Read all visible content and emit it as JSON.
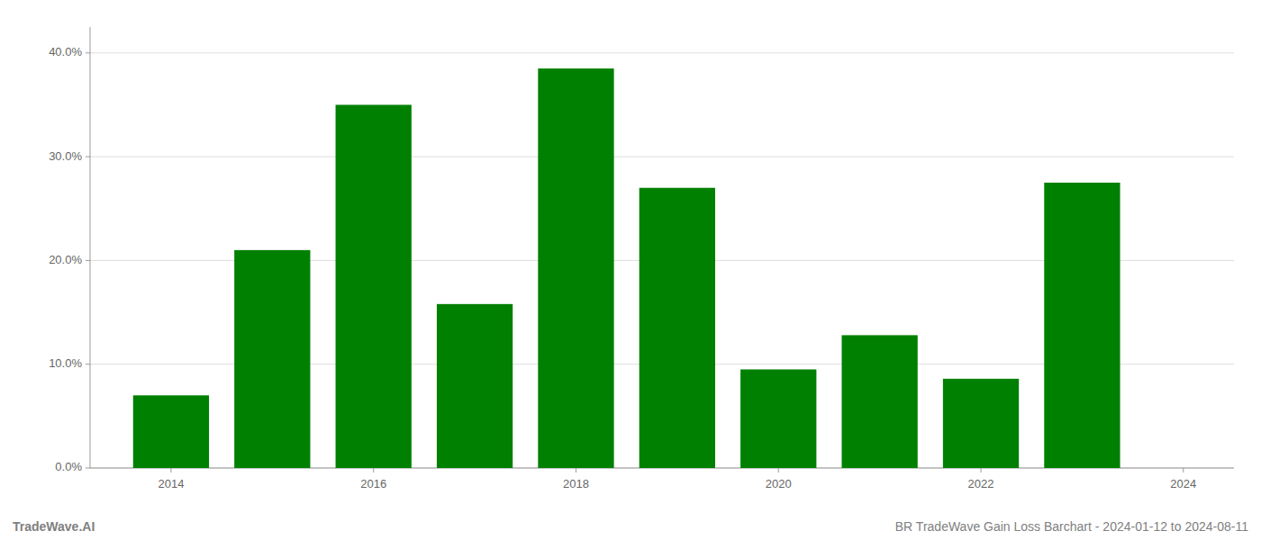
{
  "chart_data": {
    "type": "bar",
    "x": [
      2014,
      2015,
      2016,
      2017,
      2018,
      2019,
      2020,
      2021,
      2022,
      2023
    ],
    "values": [
      0.07,
      0.21,
      0.35,
      0.158,
      0.385,
      0.27,
      0.095,
      0.128,
      0.086,
      0.275
    ],
    "color": "#008000",
    "xlim": [
      2013.2,
      2024.5
    ],
    "xticks": [
      2014,
      2016,
      2018,
      2020,
      2022,
      2024
    ],
    "ylim": [
      0,
      0.425
    ],
    "yticks": [
      {
        "value": 0.0,
        "label": "0.0%"
      },
      {
        "value": 0.1,
        "label": "10.0%"
      },
      {
        "value": 0.2,
        "label": "20.0%"
      },
      {
        "value": 0.3,
        "label": "30.0%"
      },
      {
        "value": 0.4,
        "label": "40.0%"
      }
    ],
    "grid": true,
    "annotations": [
      "TradeWave.AI",
      "BR TradeWave Gain Loss Barchart - 2024-01-12 to 2024-08-11"
    ]
  }
}
